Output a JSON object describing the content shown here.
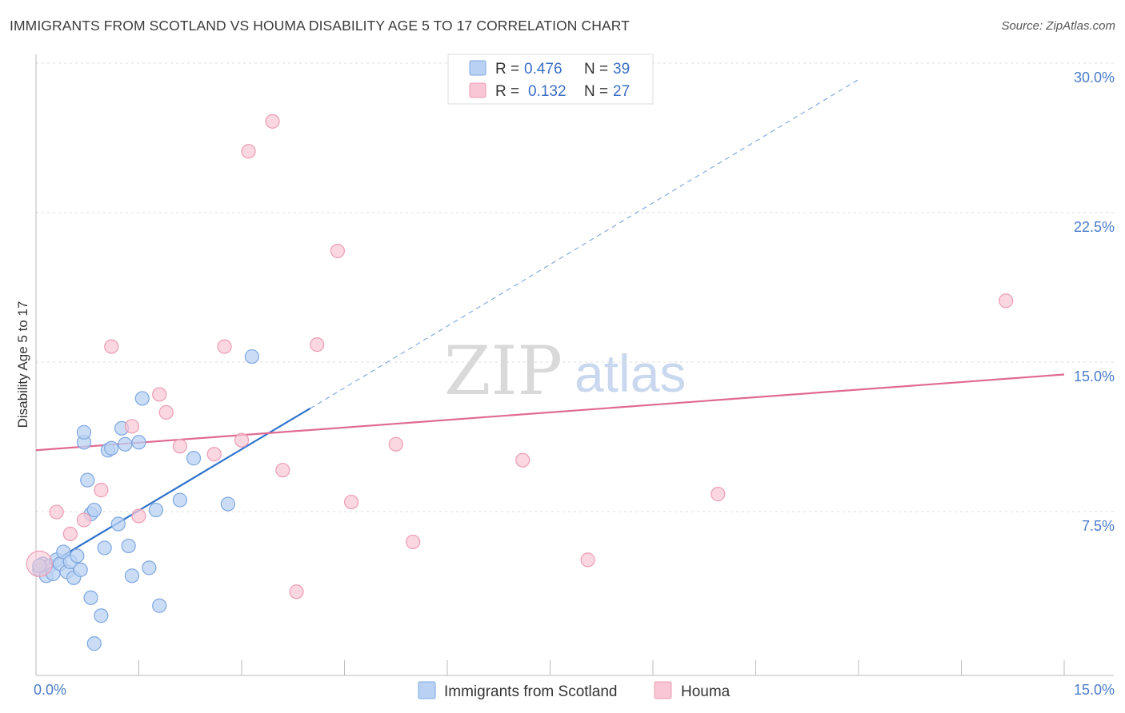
{
  "title": "IMMIGRANTS FROM SCOTLAND VS HOUMA DISABILITY AGE 5 TO 17 CORRELATION CHART",
  "source": "Source: ZipAtlas.com",
  "watermark": {
    "zip": "ZIP",
    "atlas": "atlas"
  },
  "colors": {
    "blue_fill": "#b9d2f3",
    "blue_stroke": "#7ea7e0",
    "blue_line": "#2f72cc",
    "pink_fill": "#f8c6d4",
    "pink_stroke": "#ec9db4",
    "pink_line": "#e06a93",
    "tick_label": "#4a7cc7"
  },
  "legend": {
    "rows": [
      {
        "r_label": "R = ",
        "r_value": "0.476",
        "n_label": "N = ",
        "n_value": "39"
      },
      {
        "r_label": "R = ",
        "r_value": "0.132",
        "n_label": "N = ",
        "n_value": "27"
      }
    ]
  },
  "chart_data": {
    "type": "scatter",
    "title": "IMMIGRANTS FROM SCOTLAND VS HOUMA DISABILITY AGE 5 TO 17 CORRELATION CHART",
    "xlabel": "",
    "ylabel": "Disability Age 5 to 17",
    "xlim": [
      0,
      15
    ],
    "ylim": [
      0,
      30
    ],
    "x_tick_labels": [
      "0.0%",
      "15.0%"
    ],
    "y_ticks": [
      7.5,
      15.0,
      22.5,
      30.0
    ],
    "y_tick_labels": [
      "7.5%",
      "15.0%",
      "22.5%",
      "30.0%"
    ],
    "grid": true,
    "legend_position": "top-center",
    "series": [
      {
        "name": "Immigrants from Scotland",
        "color": "#b9d2f3",
        "points": [
          [
            0.05,
            5.3
          ],
          [
            0.1,
            5.6
          ],
          [
            0.15,
            5.0
          ],
          [
            0.2,
            5.5
          ],
          [
            0.25,
            5.1
          ],
          [
            0.3,
            5.8
          ],
          [
            0.35,
            5.6
          ],
          [
            0.4,
            6.2
          ],
          [
            0.45,
            5.2
          ],
          [
            0.5,
            5.7
          ],
          [
            0.55,
            4.9
          ],
          [
            0.6,
            6.0
          ],
          [
            0.65,
            5.3
          ],
          [
            0.8,
            3.9
          ],
          [
            0.85,
            1.6
          ],
          [
            0.95,
            3.0
          ],
          [
            1.0,
            6.4
          ],
          [
            1.05,
            11.3
          ],
          [
            1.1,
            11.4
          ],
          [
            1.2,
            7.6
          ],
          [
            1.25,
            12.4
          ],
          [
            1.35,
            6.5
          ],
          [
            1.4,
            5.0
          ],
          [
            1.5,
            11.7
          ],
          [
            1.55,
            13.9
          ],
          [
            1.65,
            5.4
          ],
          [
            1.75,
            8.3
          ],
          [
            1.8,
            3.5
          ],
          [
            2.1,
            8.8
          ],
          [
            2.3,
            10.9
          ],
          [
            2.8,
            8.6
          ],
          [
            3.15,
            16.0
          ],
          [
            0.75,
            9.8
          ],
          [
            0.8,
            8.1
          ],
          [
            0.7,
            11.7
          ],
          [
            0.7,
            12.2
          ],
          [
            1.3,
            11.6
          ],
          [
            0.85,
            8.3
          ],
          [
            0.05,
            5.5
          ]
        ],
        "trend": {
          "x": [
            0.0,
            4.0
          ],
          "y": [
            5.2,
            13.4
          ],
          "extended_to": [
            12.0,
            29.9
          ]
        }
      },
      {
        "name": "Houma",
        "color": "#f8c6d4",
        "points": [
          [
            0.05,
            5.6
          ],
          [
            0.3,
            8.2
          ],
          [
            0.5,
            7.1
          ],
          [
            0.7,
            7.8
          ],
          [
            0.95,
            9.3
          ],
          [
            1.1,
            16.5
          ],
          [
            1.4,
            12.5
          ],
          [
            1.5,
            8.0
          ],
          [
            1.8,
            14.1
          ],
          [
            1.9,
            13.2
          ],
          [
            2.1,
            11.5
          ],
          [
            2.6,
            11.1
          ],
          [
            2.75,
            16.5
          ],
          [
            3.0,
            11.8
          ],
          [
            3.1,
            26.3
          ],
          [
            3.45,
            27.8
          ],
          [
            3.6,
            10.3
          ],
          [
            3.8,
            4.2
          ],
          [
            4.1,
            16.6
          ],
          [
            4.4,
            21.3
          ],
          [
            4.6,
            8.7
          ],
          [
            5.25,
            11.6
          ],
          [
            5.5,
            6.7
          ],
          [
            7.1,
            10.8
          ],
          [
            8.05,
            5.8
          ],
          [
            9.95,
            9.1
          ],
          [
            14.15,
            18.8
          ]
        ],
        "trend": {
          "x": [
            0.0,
            15.0
          ],
          "y": [
            11.3,
            15.1
          ]
        }
      }
    ]
  }
}
